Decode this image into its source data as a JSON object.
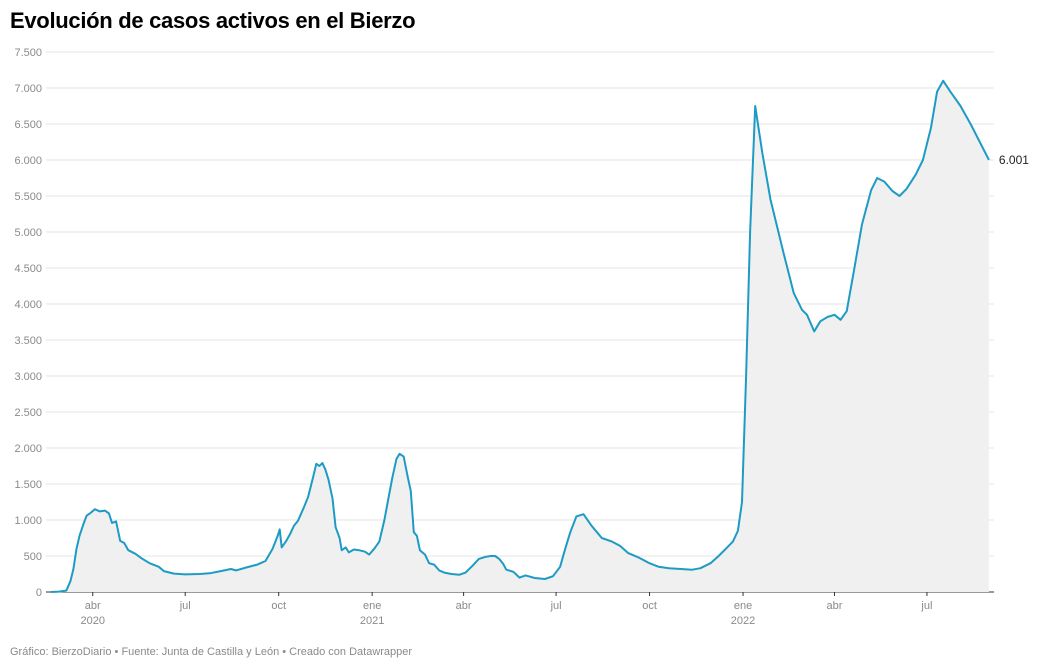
{
  "chart_data": {
    "type": "area",
    "title": "Evolución de casos activos en el Bierzo",
    "xlabel": "",
    "ylabel": "",
    "ylim": [
      0,
      7500
    ],
    "xlim": [
      "2020-02-15",
      "2022-09-05"
    ],
    "grid": true,
    "line_color": "#1d9bc4",
    "fill_color": "#f0f0f0",
    "y_ticks": [
      {
        "value": 0,
        "label": "0"
      },
      {
        "value": 500,
        "label": "500"
      },
      {
        "value": 1000,
        "label": "1.000"
      },
      {
        "value": 1500,
        "label": "1.500"
      },
      {
        "value": 2000,
        "label": "2.000"
      },
      {
        "value": 2500,
        "label": "2.500"
      },
      {
        "value": 3000,
        "label": "3.000"
      },
      {
        "value": 3500,
        "label": "3.500"
      },
      {
        "value": 4000,
        "label": "4.000"
      },
      {
        "value": 4500,
        "label": "4.500"
      },
      {
        "value": 5000,
        "label": "5.000"
      },
      {
        "value": 5500,
        "label": "5.500"
      },
      {
        "value": 6000,
        "label": "6.000"
      },
      {
        "value": 6500,
        "label": "6.500"
      },
      {
        "value": 7000,
        "label": "7.000"
      },
      {
        "value": 7500,
        "label": "7.500"
      }
    ],
    "x_ticks": [
      {
        "date": "2020-04-01",
        "label": "abr",
        "year": "2020"
      },
      {
        "date": "2020-07-01",
        "label": "jul",
        "year": ""
      },
      {
        "date": "2020-10-01",
        "label": "oct",
        "year": ""
      },
      {
        "date": "2021-01-01",
        "label": "ene",
        "year": "2021"
      },
      {
        "date": "2021-04-01",
        "label": "abr",
        "year": ""
      },
      {
        "date": "2021-07-01",
        "label": "jul",
        "year": ""
      },
      {
        "date": "2021-10-01",
        "label": "oct",
        "year": ""
      },
      {
        "date": "2022-01-01",
        "label": "ene",
        "year": "2022"
      },
      {
        "date": "2022-04-01",
        "label": "abr",
        "year": ""
      },
      {
        "date": "2022-07-01",
        "label": "jul",
        "year": ""
      }
    ],
    "end_label": "6.001",
    "series": [
      {
        "points": [
          [
            "2020-02-20",
            0
          ],
          [
            "2020-02-28",
            5
          ],
          [
            "2020-03-06",
            20
          ],
          [
            "2020-03-10",
            150
          ],
          [
            "2020-03-13",
            320
          ],
          [
            "2020-03-16",
            600
          ],
          [
            "2020-03-19",
            780
          ],
          [
            "2020-03-23",
            950
          ],
          [
            "2020-03-26",
            1060
          ],
          [
            "2020-03-30",
            1100
          ],
          [
            "2020-04-03",
            1150
          ],
          [
            "2020-04-08",
            1120
          ],
          [
            "2020-04-13",
            1130
          ],
          [
            "2020-04-17",
            1090
          ],
          [
            "2020-04-20",
            960
          ],
          [
            "2020-04-24",
            980
          ],
          [
            "2020-04-28",
            710
          ],
          [
            "2020-05-02",
            680
          ],
          [
            "2020-05-06",
            580
          ],
          [
            "2020-05-13",
            530
          ],
          [
            "2020-05-20",
            460
          ],
          [
            "2020-05-27",
            400
          ],
          [
            "2020-06-05",
            350
          ],
          [
            "2020-06-10",
            290
          ],
          [
            "2020-06-20",
            255
          ],
          [
            "2020-07-01",
            245
          ],
          [
            "2020-07-15",
            250
          ],
          [
            "2020-07-25",
            260
          ],
          [
            "2020-08-05",
            290
          ],
          [
            "2020-08-15",
            320
          ],
          [
            "2020-08-20",
            300
          ],
          [
            "2020-08-30",
            340
          ],
          [
            "2020-09-10",
            380
          ],
          [
            "2020-09-18",
            430
          ],
          [
            "2020-09-25",
            600
          ],
          [
            "2020-09-30",
            780
          ],
          [
            "2020-10-02",
            870
          ],
          [
            "2020-10-04",
            620
          ],
          [
            "2020-10-08",
            700
          ],
          [
            "2020-10-12",
            800
          ],
          [
            "2020-10-16",
            920
          ],
          [
            "2020-10-20",
            990
          ],
          [
            "2020-10-25",
            1150
          ],
          [
            "2020-10-30",
            1320
          ],
          [
            "2020-11-04",
            1600
          ],
          [
            "2020-11-07",
            1780
          ],
          [
            "2020-11-10",
            1750
          ],
          [
            "2020-11-13",
            1790
          ],
          [
            "2020-11-16",
            1700
          ],
          [
            "2020-11-19",
            1560
          ],
          [
            "2020-11-23",
            1300
          ],
          [
            "2020-11-26",
            900
          ],
          [
            "2020-11-30",
            750
          ],
          [
            "2020-12-02",
            580
          ],
          [
            "2020-12-06",
            620
          ],
          [
            "2020-12-09",
            550
          ],
          [
            "2020-12-14",
            590
          ],
          [
            "2020-12-19",
            580
          ],
          [
            "2020-12-25",
            560
          ],
          [
            "2020-12-29",
            520
          ],
          [
            "2021-01-03",
            600
          ],
          [
            "2021-01-08",
            700
          ],
          [
            "2021-01-13",
            1000
          ],
          [
            "2021-01-17",
            1300
          ],
          [
            "2021-01-21",
            1600
          ],
          [
            "2021-01-25",
            1850
          ],
          [
            "2021-01-28",
            1920
          ],
          [
            "2021-02-01",
            1880
          ],
          [
            "2021-02-05",
            1600
          ],
          [
            "2021-02-08",
            1400
          ],
          [
            "2021-02-11",
            830
          ],
          [
            "2021-02-14",
            780
          ],
          [
            "2021-02-17",
            580
          ],
          [
            "2021-02-22",
            520
          ],
          [
            "2021-02-26",
            400
          ],
          [
            "2021-03-03",
            380
          ],
          [
            "2021-03-08",
            300
          ],
          [
            "2021-03-13",
            270
          ],
          [
            "2021-03-20",
            250
          ],
          [
            "2021-03-28",
            240
          ],
          [
            "2021-04-03",
            270
          ],
          [
            "2021-04-10",
            370
          ],
          [
            "2021-04-16",
            460
          ],
          [
            "2021-04-23",
            490
          ],
          [
            "2021-04-28",
            500
          ],
          [
            "2021-05-02",
            500
          ],
          [
            "2021-05-06",
            460
          ],
          [
            "2021-05-10",
            390
          ],
          [
            "2021-05-13",
            310
          ],
          [
            "2021-05-20",
            280
          ],
          [
            "2021-05-26",
            200
          ],
          [
            "2021-06-01",
            230
          ],
          [
            "2021-06-10",
            195
          ],
          [
            "2021-06-20",
            180
          ],
          [
            "2021-06-28",
            220
          ],
          [
            "2021-07-05",
            350
          ],
          [
            "2021-07-10",
            600
          ],
          [
            "2021-07-15",
            830
          ],
          [
            "2021-07-21",
            1050
          ],
          [
            "2021-07-28",
            1080
          ],
          [
            "2021-08-05",
            920
          ],
          [
            "2021-08-15",
            750
          ],
          [
            "2021-08-25",
            700
          ],
          [
            "2021-09-02",
            640
          ],
          [
            "2021-09-10",
            540
          ],
          [
            "2021-09-20",
            480
          ],
          [
            "2021-10-01",
            400
          ],
          [
            "2021-10-10",
            350
          ],
          [
            "2021-10-20",
            330
          ],
          [
            "2021-11-01",
            320
          ],
          [
            "2021-11-12",
            310
          ],
          [
            "2021-11-20",
            330
          ],
          [
            "2021-11-30",
            400
          ],
          [
            "2021-12-08",
            500
          ],
          [
            "2021-12-15",
            600
          ],
          [
            "2021-12-22",
            700
          ],
          [
            "2021-12-27",
            850
          ],
          [
            "2021-12-31",
            1250
          ],
          [
            "2022-01-04",
            3000
          ],
          [
            "2022-01-08",
            5000
          ],
          [
            "2022-01-13",
            6750
          ],
          [
            "2022-01-20",
            6100
          ],
          [
            "2022-01-28",
            5450
          ],
          [
            "2022-02-10",
            4700
          ],
          [
            "2022-02-20",
            4150
          ],
          [
            "2022-02-28",
            3920
          ],
          [
            "2022-03-05",
            3850
          ],
          [
            "2022-03-12",
            3620
          ],
          [
            "2022-03-18",
            3760
          ],
          [
            "2022-03-25",
            3820
          ],
          [
            "2022-04-01",
            3850
          ],
          [
            "2022-04-07",
            3780
          ],
          [
            "2022-04-13",
            3900
          ],
          [
            "2022-04-20",
            4450
          ],
          [
            "2022-04-28",
            5100
          ],
          [
            "2022-05-07",
            5580
          ],
          [
            "2022-05-13",
            5750
          ],
          [
            "2022-05-20",
            5700
          ],
          [
            "2022-05-28",
            5570
          ],
          [
            "2022-06-04",
            5500
          ],
          [
            "2022-06-11",
            5600
          ],
          [
            "2022-06-20",
            5800
          ],
          [
            "2022-06-27",
            6000
          ],
          [
            "2022-07-05",
            6450
          ],
          [
            "2022-07-11",
            6950
          ],
          [
            "2022-07-17",
            7100
          ],
          [
            "2022-07-24",
            6950
          ],
          [
            "2022-08-03",
            6750
          ],
          [
            "2022-08-13",
            6500
          ],
          [
            "2022-08-22",
            6250
          ],
          [
            "2022-08-31",
            6001
          ]
        ]
      }
    ]
  },
  "footer": {
    "text": "Gráfico: BierzoDiario • Fuente: Junta de Castilla y León • Creado con Datawrapper"
  }
}
